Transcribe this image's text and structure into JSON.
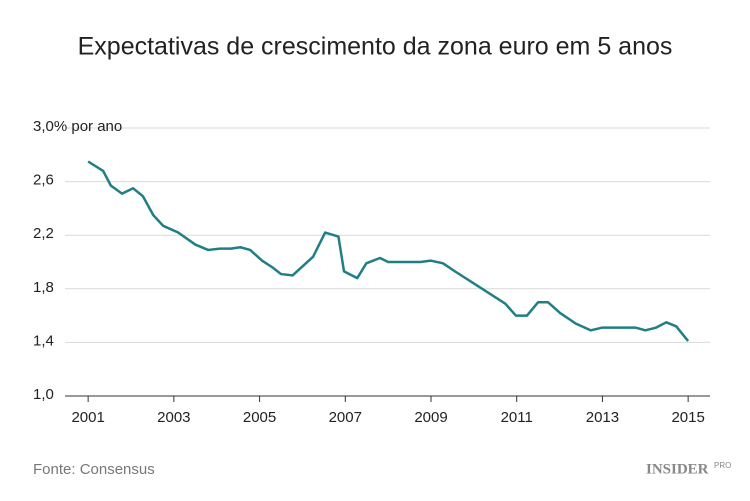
{
  "chart_data": {
    "type": "line",
    "title": "Expectativas de crescimento da zona euro em 5 anos",
    "source": "Fonte: Consensus",
    "logo": "INSIDER",
    "logo_badge": "PRO",
    "x": [
      2001.0,
      2001.35,
      2001.53,
      2001.79,
      2002.05,
      2002.28,
      2002.52,
      2002.75,
      2003.1,
      2003.5,
      2003.8,
      2004.08,
      2004.33,
      2004.55,
      2004.78,
      2005.06,
      2005.3,
      2005.5,
      2005.77,
      2006.25,
      2006.53,
      2006.84,
      2006.97,
      2007.28,
      2007.49,
      2007.81,
      2008.0,
      2008.5,
      2008.75,
      2009.0,
      2009.28,
      2009.56,
      2010.73,
      2010.98,
      2011.24,
      2011.5,
      2011.73,
      2012.01,
      2012.38,
      2012.73,
      2012.99,
      2013.45,
      2013.78,
      2014.0,
      2014.25,
      2014.49,
      2014.72,
      2015.0
    ],
    "series": [
      {
        "name": "Expectativas",
        "color": "#1f7f85",
        "values": [
          2.75,
          2.68,
          2.57,
          2.51,
          2.55,
          2.49,
          2.35,
          2.27,
          2.22,
          2.13,
          2.09,
          2.1,
          2.1,
          2.11,
          2.09,
          2.01,
          1.96,
          1.91,
          1.9,
          2.04,
          2.22,
          2.19,
          1.93,
          1.88,
          1.99,
          2.03,
          2.0,
          2.0,
          2.0,
          2.01,
          1.99,
          1.93,
          1.69,
          1.6,
          1.6,
          1.7,
          1.7,
          1.62,
          1.54,
          1.49,
          1.51,
          1.51,
          1.51,
          1.49,
          1.51,
          1.55,
          1.52,
          1.41
        ]
      }
    ],
    "xlim": [
      2000.46,
      2015.51
    ],
    "xticks": [
      2001,
      2003,
      2005,
      2007,
      2009,
      2011,
      2013,
      2015
    ],
    "ylim": [
      1.0,
      3.0
    ],
    "yticks": [
      {
        "value": 1.0,
        "label": "1,0"
      },
      {
        "value": 1.4,
        "label": "1,4"
      },
      {
        "value": 1.8,
        "label": "1,8"
      },
      {
        "value": 2.2,
        "label": "2,2"
      },
      {
        "value": 2.6,
        "label": "2,6"
      },
      {
        "value": 3.0,
        "label": "3,0% por ano"
      }
    ],
    "grid": true
  }
}
